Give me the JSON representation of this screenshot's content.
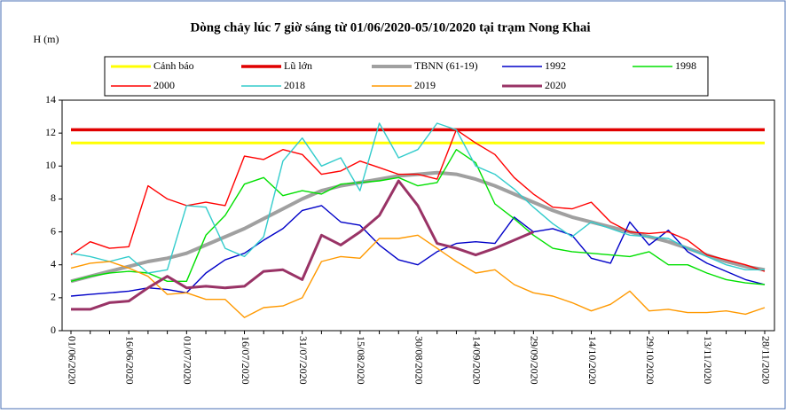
{
  "chart_data": {
    "type": "line",
    "title": "Dòng chảy lúc 7 giờ sáng từ 01/06/2020-05/10/2020 tại trạm Nong Khai",
    "y_label": "H (m)",
    "categories": [
      "01/06/2020",
      null,
      null,
      "16/06/2020",
      null,
      null,
      "01/07/2020",
      null,
      null,
      "16/07/2020",
      null,
      null,
      "31/07/2020",
      null,
      null,
      "15/08/2020",
      null,
      null,
      "30/08/2020",
      null,
      null,
      "14/09/2020",
      null,
      null,
      "29/09/2020",
      null,
      null,
      "14/10/2020",
      null,
      null,
      "29/10/2020",
      null,
      null,
      "13/11/2020",
      null,
      null,
      "28/11/2020"
    ],
    "ylim": [
      0,
      14
    ],
    "yticks": [
      0,
      2,
      4,
      6,
      8,
      10,
      12,
      14
    ],
    "series": [
      {
        "name": "Cảnh báo",
        "color": "#ffff00",
        "width": 3,
        "values": [
          11.4,
          11.4,
          11.4,
          11.4,
          11.4,
          11.4,
          11.4,
          11.4,
          11.4,
          11.4,
          11.4,
          11.4,
          11.4,
          11.4,
          11.4,
          11.4,
          11.4,
          11.4,
          11.4,
          11.4,
          11.4,
          11.4,
          11.4,
          11.4,
          11.4,
          11.4,
          11.4,
          11.4,
          11.4,
          11.4,
          11.4,
          11.4,
          11.4,
          11.4,
          11.4,
          11.4,
          11.4
        ]
      },
      {
        "name": "Lũ lớn",
        "color": "#e00000",
        "width": 3.5,
        "values": [
          12.2,
          12.2,
          12.2,
          12.2,
          12.2,
          12.2,
          12.2,
          12.2,
          12.2,
          12.2,
          12.2,
          12.2,
          12.2,
          12.2,
          12.2,
          12.2,
          12.2,
          12.2,
          12.2,
          12.2,
          12.2,
          12.2,
          12.2,
          12.2,
          12.2,
          12.2,
          12.2,
          12.2,
          12.2,
          12.2,
          12.2,
          12.2,
          12.2,
          12.2,
          12.2,
          12.2,
          12.2
        ]
      },
      {
        "name": "TBNN (61-19)",
        "color": "#a0a0a0",
        "width": 4,
        "values": [
          3.0,
          3.3,
          3.6,
          3.9,
          4.2,
          4.4,
          4.7,
          5.2,
          5.7,
          6.2,
          6.8,
          7.4,
          8.0,
          8.5,
          8.8,
          9.0,
          9.2,
          9.4,
          9.5,
          9.6,
          9.5,
          9.2,
          8.8,
          8.3,
          7.8,
          7.3,
          6.9,
          6.6,
          6.3,
          6.0,
          5.7,
          5.4,
          5.0,
          4.6,
          4.2,
          3.9,
          3.7
        ]
      },
      {
        "name": "1992",
        "color": "#0000c8",
        "width": 1.4,
        "values": [
          2.1,
          2.2,
          2.3,
          2.4,
          2.6,
          2.5,
          2.3,
          3.5,
          4.3,
          4.7,
          5.5,
          6.2,
          7.3,
          7.6,
          6.6,
          6.4,
          5.2,
          4.3,
          4.0,
          4.8,
          5.3,
          5.4,
          5.3,
          6.9,
          6.0,
          6.2,
          5.8,
          4.4,
          4.1,
          6.6,
          5.2,
          6.1,
          4.8,
          4.1,
          3.6,
          3.1,
          2.8
        ]
      },
      {
        "name": "1998",
        "color": "#00e000",
        "width": 1.4,
        "values": [
          3.0,
          3.3,
          3.5,
          3.6,
          3.5,
          3.0,
          3.0,
          5.8,
          7.0,
          8.9,
          9.3,
          8.2,
          8.5,
          8.3,
          8.9,
          9.0,
          9.1,
          9.3,
          8.8,
          9.0,
          11.0,
          10.2,
          7.7,
          6.8,
          5.8,
          5.0,
          4.8,
          4.7,
          4.6,
          4.5,
          4.8,
          4.0,
          4.0,
          3.5,
          3.1,
          2.9,
          2.8
        ]
      },
      {
        "name": "2000",
        "color": "#ff0000",
        "width": 1.4,
        "values": [
          4.6,
          5.4,
          5.0,
          5.1,
          8.8,
          8.0,
          7.6,
          7.8,
          7.6,
          10.6,
          10.4,
          11.0,
          10.7,
          9.5,
          9.7,
          10.3,
          9.9,
          9.5,
          9.5,
          9.2,
          12.2,
          11.4,
          10.7,
          9.3,
          8.3,
          7.5,
          7.4,
          7.8,
          6.6,
          6.0,
          5.9,
          6.0,
          5.5,
          4.6,
          4.3,
          4.0,
          3.6
        ]
      },
      {
        "name": "2018",
        "color": "#33cccc",
        "width": 1.4,
        "values": [
          4.7,
          4.5,
          4.2,
          4.5,
          3.5,
          3.7,
          7.6,
          7.5,
          5.0,
          4.5,
          5.7,
          10.3,
          11.7,
          10.0,
          10.5,
          8.5,
          12.6,
          10.5,
          11.0,
          12.6,
          12.2,
          10.0,
          9.5,
          8.6,
          7.5,
          6.5,
          5.7,
          6.6,
          6.2,
          5.8,
          5.7,
          5.6,
          5.0,
          4.5,
          4.0,
          3.7,
          3.7
        ]
      },
      {
        "name": "2019",
        "color": "#ff9900",
        "width": 1.4,
        "values": [
          3.8,
          4.1,
          4.2,
          3.8,
          3.3,
          2.2,
          2.3,
          1.9,
          1.9,
          0.8,
          1.4,
          1.5,
          2.0,
          4.2,
          4.5,
          4.4,
          5.6,
          5.6,
          5.8,
          5.0,
          4.2,
          3.5,
          3.7,
          2.8,
          2.3,
          2.1,
          1.7,
          1.2,
          1.6,
          2.4,
          1.2,
          1.3,
          1.1,
          1.1,
          1.2,
          1.0,
          1.4
        ]
      },
      {
        "name": "2020",
        "color": "#993366",
        "width": 3,
        "values": [
          1.3,
          1.3,
          1.7,
          1.8,
          2.6,
          3.3,
          2.6,
          2.7,
          2.6,
          2.7,
          3.6,
          3.7,
          3.1,
          5.8,
          5.2,
          6.0,
          7.0,
          9.1,
          7.6,
          5.3,
          5.0,
          4.6,
          5.0,
          5.5,
          6.0,
          null,
          null,
          null,
          null,
          null,
          null,
          null,
          null,
          null,
          null,
          null,
          null
        ]
      }
    ]
  }
}
